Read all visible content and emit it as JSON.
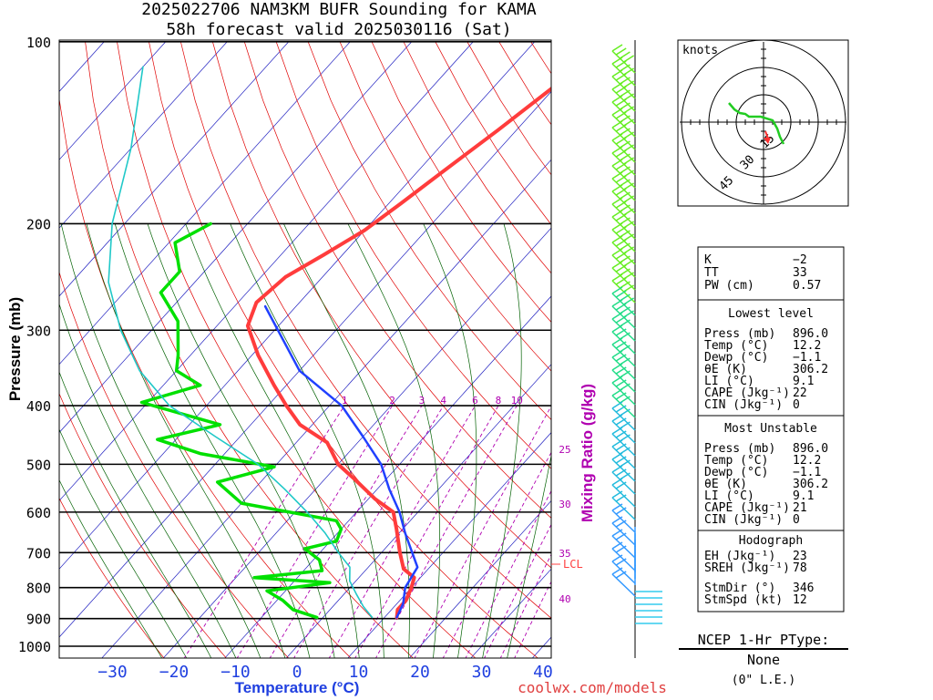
{
  "title": {
    "line1": "2025022706 NAM3KM BUFR Sounding for KAMA",
    "line2": "58h forecast valid 2025030116 (Sat)"
  },
  "footer": {
    "credit": "coolwx.com/models"
  },
  "colors": {
    "temperature": "#ff3c3c",
    "dewpoint": "#00e000",
    "parcel": "#2040ff",
    "wetbulb_curve": "#20c8c8",
    "isotherm": "#2020c0",
    "dry_adiabat": "#e00000",
    "moist_adiabat": "#006000",
    "mixing_ratio": "#b000b0",
    "lcl": "#ff4040"
  },
  "chart_data": [
    {
      "type": "skew-t",
      "ylabel": "Pressure (mb)",
      "xlabel": "Temperature (°C)",
      "mixing_ratio_label": "Mixing Ratio (g/kg)",
      "pressure_ticks": [
        100,
        200,
        300,
        400,
        500,
        600,
        700,
        800,
        900,
        1000
      ],
      "temperature_ticks": [
        -30,
        -20,
        -10,
        0,
        10,
        20,
        30,
        40
      ],
      "xlim": [
        -39,
        42
      ],
      "ylim": [
        1050,
        100
      ],
      "mixing_ratio_values": [
        1,
        2,
        3,
        4,
        6,
        8,
        10,
        15,
        20
      ],
      "mixing_ratio_side_labels": [
        25,
        30,
        35,
        40
      ],
      "lcl_label": "LCL",
      "series": [
        {
          "role": "temperature",
          "points": [
            [
              110,
              -39
            ],
            [
              140,
              -43
            ],
            [
              165,
              -46
            ],
            [
              185,
              -48
            ],
            [
              205,
              -50
            ],
            [
              225,
              -53
            ],
            [
              245,
              -56
            ],
            [
              270,
              -57
            ],
            [
              295,
              -55
            ],
            [
              330,
              -49
            ],
            [
              370,
              -42
            ],
            [
              400,
              -37
            ],
            [
              430,
              -32
            ],
            [
              460,
              -25
            ],
            [
              500,
              -20
            ],
            [
              530,
              -15
            ],
            [
              570,
              -9
            ],
            [
              600,
              -4
            ],
            [
              640,
              -1
            ],
            [
              700,
              3
            ],
            [
              745,
              6
            ],
            [
              770,
              9
            ],
            [
              800,
              10
            ],
            [
              840,
              11
            ],
            [
              870,
              11
            ],
            [
              896,
              12
            ]
          ]
        },
        {
          "role": "dewpoint",
          "points": [
            [
              200,
              -76
            ],
            [
              215,
              -79
            ],
            [
              240,
              -74
            ],
            [
              260,
              -74
            ],
            [
              290,
              -67
            ],
            [
              330,
              -62
            ],
            [
              350,
              -60
            ],
            [
              370,
              -54
            ],
            [
              395,
              -61
            ],
            [
              430,
              -45
            ],
            [
              455,
              -53
            ],
            [
              480,
              -44
            ],
            [
              505,
              -30
            ],
            [
              535,
              -37
            ],
            [
              580,
              -30
            ],
            [
              620,
              -12
            ],
            [
              640,
              -10
            ],
            [
              670,
              -9
            ],
            [
              690,
              -13
            ],
            [
              720,
              -9
            ],
            [
              750,
              -7
            ],
            [
              770,
              -17
            ],
            [
              785,
              -4
            ],
            [
              810,
              -13
            ],
            [
              840,
              -9
            ],
            [
              870,
              -6
            ],
            [
              896,
              -1
            ]
          ]
        },
        {
          "role": "parcel",
          "points": [
            [
              274,
              -55
            ],
            [
              350,
              -40
            ],
            [
              400,
              -28
            ],
            [
              450,
              -20
            ],
            [
              500,
              -13
            ],
            [
              550,
              -8
            ],
            [
              600,
              -3
            ],
            [
              650,
              1
            ],
            [
              700,
              5
            ],
            [
              740,
              8
            ],
            [
              800,
              9
            ],
            [
              850,
              11
            ],
            [
              896,
              12
            ]
          ]
        },
        {
          "role": "wetbulb_curve",
          "points": [
            [
              110,
              -110
            ],
            [
              150,
              -100
            ],
            [
              200,
              -92
            ],
            [
              250,
              -84
            ],
            [
              300,
              -75
            ],
            [
              350,
              -66
            ],
            [
              400,
              -56
            ],
            [
              450,
              -44
            ],
            [
              500,
              -33
            ],
            [
              550,
              -25
            ],
            [
              600,
              -18
            ],
            [
              650,
              -12
            ],
            [
              700,
              -7
            ],
            [
              740,
              -3
            ],
            [
              780,
              -1
            ],
            [
              820,
              2
            ],
            [
              860,
              5
            ],
            [
              896,
              8
            ]
          ]
        }
      ]
    },
    {
      "type": "wind-barbs",
      "note": "wind barb column, pressure vs barb"
    },
    {
      "type": "hodograph",
      "units_label": "knots",
      "ring_labels": [
        15,
        30,
        45
      ]
    }
  ],
  "indices": {
    "k_label": "K",
    "k_value": "−2",
    "tt_label": "TT",
    "tt_value": "33",
    "pw_label": "PW (cm)",
    "pw_value": "0.57",
    "lowest": {
      "header": "Lowest level",
      "rows": [
        {
          "label": "Press (mb)",
          "value": "896.0"
        },
        {
          "label": "Temp (°C)",
          "value": "12.2"
        },
        {
          "label": "Dewp (°C)",
          "value": "−1.1"
        },
        {
          "label": "θE (K)",
          "value": "306.2"
        },
        {
          "label": "LI (°C)",
          "value": "9.1"
        },
        {
          "label": "CAPE (Jkg⁻¹)",
          "value": "22"
        },
        {
          "label": "CIN (Jkg⁻¹)",
          "value": "0"
        }
      ]
    },
    "most_unstable": {
      "header": "Most Unstable",
      "rows": [
        {
          "label": "Press (mb)",
          "value": "896.0"
        },
        {
          "label": "Temp (°C)",
          "value": "12.2"
        },
        {
          "label": "Dewp (°C)",
          "value": "−1.1"
        },
        {
          "label": "θE (K)",
          "value": "306.2"
        },
        {
          "label": "LI (°C)",
          "value": "9.1"
        },
        {
          "label": "CAPE (Jkg⁻¹)",
          "value": "21"
        },
        {
          "label": "CIN (Jkg⁻¹)",
          "value": "0"
        }
      ]
    },
    "hodograph": {
      "header": "Hodograph",
      "rows": [
        {
          "label": "EH (Jkg⁻¹)",
          "value": "23"
        },
        {
          "label": "SREH (Jkg⁻¹)",
          "value": "78"
        },
        {
          "label": "StmDir (°)",
          "value": "346"
        },
        {
          "label": "StmSpd (kt)",
          "value": "12"
        }
      ]
    }
  },
  "ptype": {
    "title": "NCEP 1-Hr PType:",
    "value": "None",
    "note": "(0\" L.E.)"
  }
}
